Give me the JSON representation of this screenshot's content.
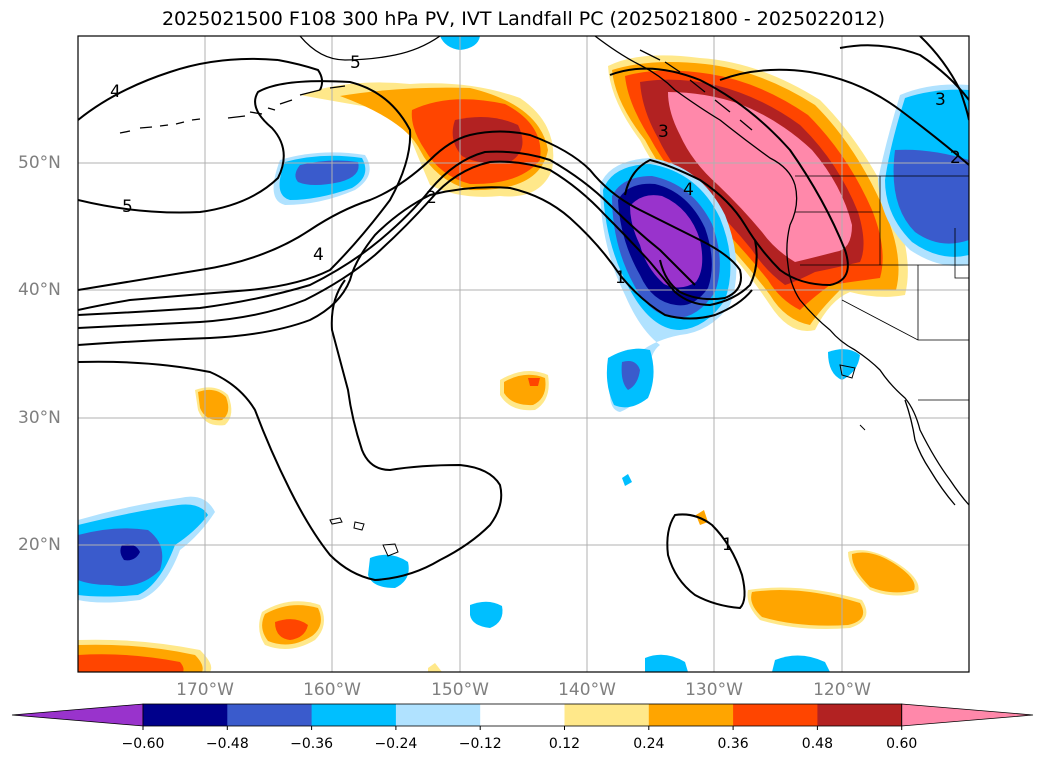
{
  "title": "2025021500 F108 300 hPa PV, IVT Landfall PC (2025021800 - 2025022012)",
  "axes": {
    "lon_labels": [
      "170°W",
      "160°W",
      "150°W",
      "140°W",
      "130°W",
      "120°W"
    ],
    "lat_labels": [
      "50°N",
      "40°N",
      "30°N",
      "20°N"
    ],
    "lon_range": [
      -180,
      -110
    ],
    "lat_range": [
      10,
      60
    ],
    "grid": true
  },
  "contour_labels": [
    "4",
    "5",
    "2",
    "4",
    "5",
    "3",
    "4",
    "1",
    "1",
    "3",
    "2"
  ],
  "colorbar": {
    "ticks": [
      "−0.60",
      "−0.48",
      "−0.36",
      "−0.24",
      "−0.12",
      "0.12",
      "0.24",
      "0.36",
      "0.48",
      "0.60"
    ],
    "colors": [
      "#9933cc",
      "#00008b",
      "#3a5bcc",
      "#00bfff",
      "#b0e2ff",
      "#ffffff",
      "#ffe88a",
      "#ffa500",
      "#ff4500",
      "#b22222",
      "#ff88aa"
    ]
  }
}
